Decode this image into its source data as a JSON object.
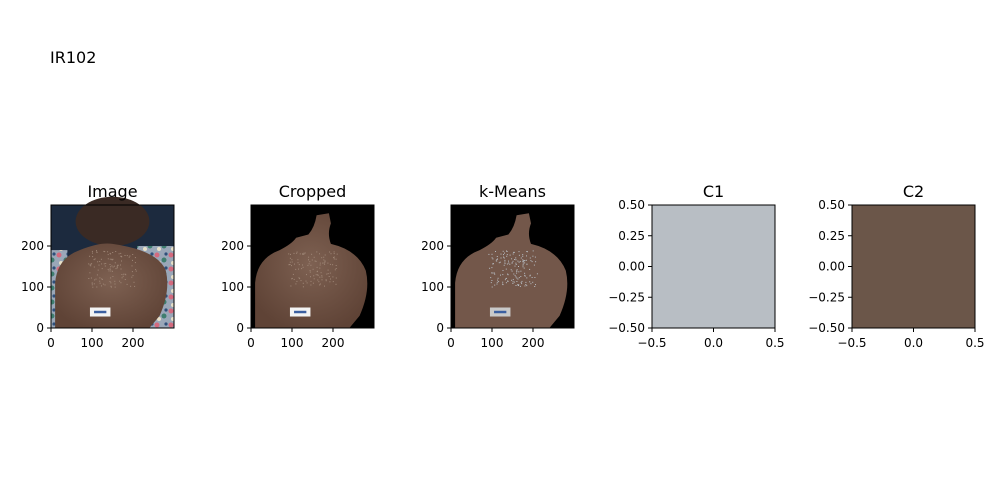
{
  "figure": {
    "suptitle": "IR102"
  },
  "colors": {
    "background_dark": "#1c2a3e",
    "skin_dark": "#6a4a3c",
    "skin_light": "#7a5d4f",
    "kmeans_skin": "#73574a",
    "c1_swatch": "#b8bec4",
    "c2_swatch": "#6b5649",
    "mask_black": "#000000",
    "label_white": "#f3f3f3"
  },
  "chart_data": [
    {
      "type": "image",
      "title": "Image",
      "xlim": [
        0,
        300
      ],
      "ylim": [
        300,
        0
      ],
      "xticks": [
        0,
        100,
        200
      ],
      "yticks": [
        0,
        100,
        200
      ],
      "xtick_labels": [
        "0",
        "100",
        "200"
      ],
      "ytick_labels": [
        "0",
        "100",
        "200"
      ],
      "content": "photo"
    },
    {
      "type": "image",
      "title": "Cropped",
      "xlim": [
        0,
        300
      ],
      "ylim": [
        300,
        0
      ],
      "xticks": [
        0,
        100,
        200
      ],
      "yticks": [
        0,
        100,
        200
      ],
      "xtick_labels": [
        "0",
        "100",
        "200"
      ],
      "ytick_labels": [
        "0",
        "100",
        "200"
      ],
      "content": "cropped"
    },
    {
      "type": "image",
      "title": "k-Means",
      "xlim": [
        0,
        300
      ],
      "ylim": [
        300,
        0
      ],
      "xticks": [
        0,
        100,
        200
      ],
      "yticks": [
        0,
        100,
        200
      ],
      "xtick_labels": [
        "0",
        "100",
        "200"
      ],
      "ytick_labels": [
        "0",
        "100",
        "200"
      ],
      "content": "kmeans"
    },
    {
      "type": "heatmap",
      "title": "C1",
      "xlim": [
        -0.5,
        0.5
      ],
      "ylim": [
        0.5,
        -0.5
      ],
      "xticks": [
        -0.5,
        0.0,
        0.5
      ],
      "yticks": [
        -0.5,
        -0.25,
        0.0,
        0.25,
        0.5
      ],
      "xtick_labels": [
        "−0.5",
        "0.0",
        "0.5"
      ],
      "ytick_labels": [
        "−0.50",
        "−0.25",
        "0.00",
        "0.25",
        "0.50"
      ],
      "content": "swatch",
      "color": "#b8bec4"
    },
    {
      "type": "heatmap",
      "title": "C2",
      "xlim": [
        -0.5,
        0.5
      ],
      "ylim": [
        0.5,
        -0.5
      ],
      "xticks": [
        -0.5,
        0.0,
        0.5
      ],
      "yticks": [
        -0.5,
        -0.25,
        0.0,
        0.25,
        0.5
      ],
      "xtick_labels": [
        "−0.5",
        "0.0",
        "0.5"
      ],
      "ytick_labels": [
        "−0.50",
        "−0.25",
        "0.00",
        "0.25",
        "0.50"
      ],
      "content": "swatch",
      "color": "#6b5649"
    }
  ]
}
